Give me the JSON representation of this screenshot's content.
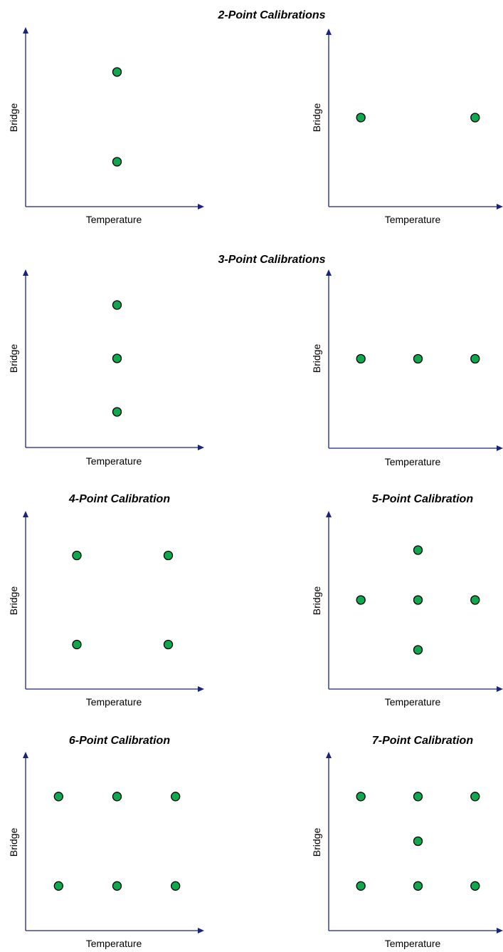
{
  "colors": {
    "axis": "#1a237e",
    "point_fill": "#0ea84f",
    "point_stroke": "#000000"
  },
  "section_titles": {
    "two_point": "2-Point Calibrations",
    "three_point": "3-Point Calibrations",
    "four_point": "4-Point Calibration",
    "five_point": "5-Point Calibration",
    "six_point": "6-Point Calibration",
    "seven_point": "7-Point Calibration"
  },
  "axis_labels": {
    "x": "Temperature",
    "y": "Bridge"
  },
  "panels": [
    {
      "id": "two-point-a",
      "points": [
        [
          0.5,
          0.75
        ],
        [
          0.5,
          0.25
        ]
      ]
    },
    {
      "id": "two-point-b",
      "points": [
        [
          0.18,
          0.5
        ],
        [
          0.82,
          0.5
        ]
      ]
    },
    {
      "id": "three-point-a",
      "points": [
        [
          0.5,
          0.8
        ],
        [
          0.5,
          0.5
        ],
        [
          0.5,
          0.2
        ]
      ]
    },
    {
      "id": "three-point-b",
      "points": [
        [
          0.18,
          0.5
        ],
        [
          0.5,
          0.5
        ],
        [
          0.82,
          0.5
        ]
      ]
    },
    {
      "id": "four-point",
      "points": [
        [
          0.28,
          0.75
        ],
        [
          0.78,
          0.75
        ],
        [
          0.28,
          0.25
        ],
        [
          0.78,
          0.25
        ]
      ]
    },
    {
      "id": "five-point",
      "points": [
        [
          0.5,
          0.78
        ],
        [
          0.18,
          0.5
        ],
        [
          0.5,
          0.5
        ],
        [
          0.82,
          0.5
        ],
        [
          0.5,
          0.22
        ]
      ]
    },
    {
      "id": "six-point",
      "points": [
        [
          0.18,
          0.75
        ],
        [
          0.5,
          0.75
        ],
        [
          0.82,
          0.75
        ],
        [
          0.18,
          0.25
        ],
        [
          0.5,
          0.25
        ],
        [
          0.82,
          0.25
        ]
      ]
    },
    {
      "id": "seven-point",
      "points": [
        [
          0.18,
          0.75
        ],
        [
          0.5,
          0.75
        ],
        [
          0.82,
          0.75
        ],
        [
          0.5,
          0.5
        ],
        [
          0.18,
          0.25
        ],
        [
          0.5,
          0.25
        ],
        [
          0.82,
          0.25
        ]
      ]
    }
  ]
}
